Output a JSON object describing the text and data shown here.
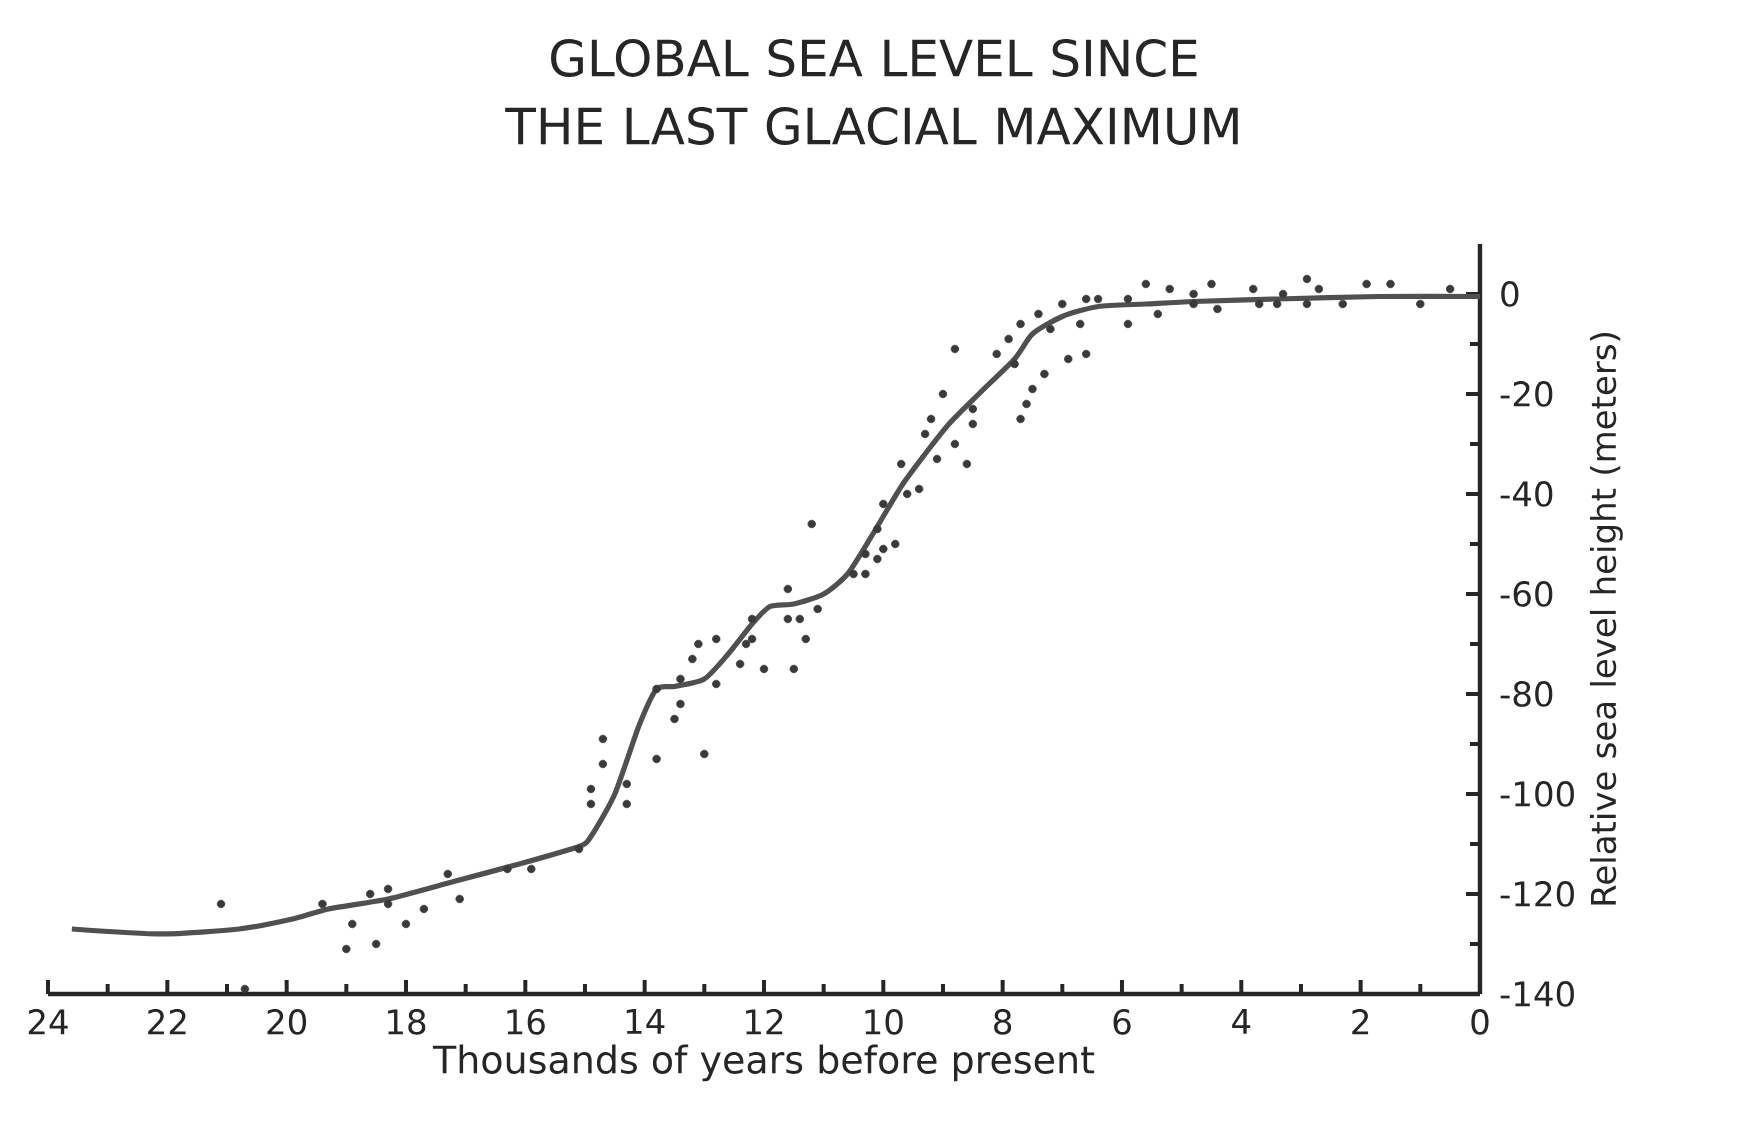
{
  "chart_data": {
    "type": "scatter",
    "title": "GLOBAL SEA LEVEL SINCE THE LAST GLACIAL MAXIMUM",
    "xlabel": "Thousands of years before present",
    "ylabel": "Relative sea level height (meters)",
    "xlim": [
      24,
      0
    ],
    "ylim": [
      -140,
      10
    ],
    "xticks": [
      24,
      22,
      20,
      18,
      16,
      14,
      12,
      10,
      8,
      6,
      4,
      2,
      0
    ],
    "yticks": [
      0,
      -20,
      -40,
      -60,
      -80,
      -100,
      -120,
      -140
    ],
    "series": [
      {
        "marker": "circle",
        "color": "#3a3a3a",
        "x": [
          21.1,
          20.7,
          19.4,
          18.9,
          19.0,
          18.6,
          18.3,
          18.3,
          18.5,
          18.0,
          17.7,
          17.3,
          17.1,
          16.3,
          15.9,
          15.1,
          14.9,
          14.9,
          14.7,
          14.7,
          14.3,
          14.3,
          13.8,
          13.0,
          13.8,
          13.5,
          13.4,
          13.4,
          13.2,
          13.1,
          12.8,
          12.8,
          12.4,
          12.3,
          12.2,
          12.2,
          12.0,
          11.6,
          11.6,
          11.4,
          11.3,
          11.5,
          11.1,
          11.2,
          10.5,
          10.3,
          10.3,
          10.1,
          10.0,
          9.8,
          10.1,
          10.0,
          9.6,
          9.4,
          9.7,
          9.1,
          8.6,
          8.8,
          9.3,
          9.2,
          9.0,
          8.5,
          8.5,
          8.8,
          8.1,
          7.9,
          7.8,
          7.7,
          7.7,
          7.6,
          7.5,
          7.3,
          7.4,
          7.2,
          7.0,
          6.9,
          6.7,
          6.6,
          6.6,
          6.4,
          5.9,
          5.9,
          5.6,
          5.4,
          5.2,
          4.8,
          4.8,
          4.5,
          4.4,
          3.8,
          3.7,
          3.4,
          3.3,
          2.9,
          2.9,
          2.7,
          2.3,
          1.9,
          1.5,
          1.0,
          0.5
        ],
        "values": [
          -122,
          -139,
          -122,
          -126,
          -131,
          -120,
          -119,
          -122,
          -130,
          -126,
          -123,
          -116,
          -121,
          -115,
          -115,
          -111,
          -99,
          -102,
          -89,
          -94,
          -98,
          -102,
          -93,
          -92,
          -79,
          -85,
          -82,
          -77,
          -73,
          -70,
          -69,
          -78,
          -74,
          -70,
          -69,
          -65,
          -75,
          -59,
          -65,
          -65,
          -69,
          -75,
          -63,
          -46,
          -56,
          -56,
          -52,
          -53,
          -51,
          -50,
          -47,
          -42,
          -40,
          -39,
          -34,
          -33,
          -34,
          -30,
          -28,
          -25,
          -20,
          -26,
          -23,
          -11,
          -12,
          -9,
          -14,
          -6,
          -25,
          -22,
          -19,
          -16,
          -4,
          -7,
          -2,
          -13,
          -6,
          -12,
          -1,
          -1,
          -1,
          -6,
          2,
          -4,
          1,
          0,
          -2,
          2,
          -3,
          1,
          -2,
          -2,
          0,
          3,
          -2,
          1,
          -2,
          2,
          2,
          -2,
          1
        ]
      },
      {
        "type": "line",
        "marker": "none",
        "line_style": "solid",
        "color": "#505050",
        "x": [
          23.6,
          22.1,
          20.8,
          19.9,
          19.3,
          18.3,
          17.2,
          16.1,
          15.1,
          14.9,
          14.5,
          14.1,
          13.8,
          13.5,
          13.0,
          12.6,
          12.2,
          11.9,
          11.5,
          11.0,
          10.6,
          10.2,
          9.7,
          9.3,
          8.9,
          8.4,
          7.8,
          7.5,
          7.0,
          6.4,
          5.6,
          4.8,
          3.4,
          1.7,
          0.0
        ],
        "values": [
          -127,
          -128,
          -127,
          -125,
          -123,
          -121,
          -117.5,
          -114,
          -110.5,
          -108.5,
          -100,
          -86.5,
          -79,
          -78.5,
          -77,
          -72,
          -66,
          -62.5,
          -62,
          -60,
          -56,
          -48.5,
          -38.5,
          -32,
          -26,
          -20,
          -13,
          -8,
          -4.5,
          -2.5,
          -2,
          -1.5,
          -1,
          -0.5,
          -0.5
        ]
      }
    ]
  }
}
